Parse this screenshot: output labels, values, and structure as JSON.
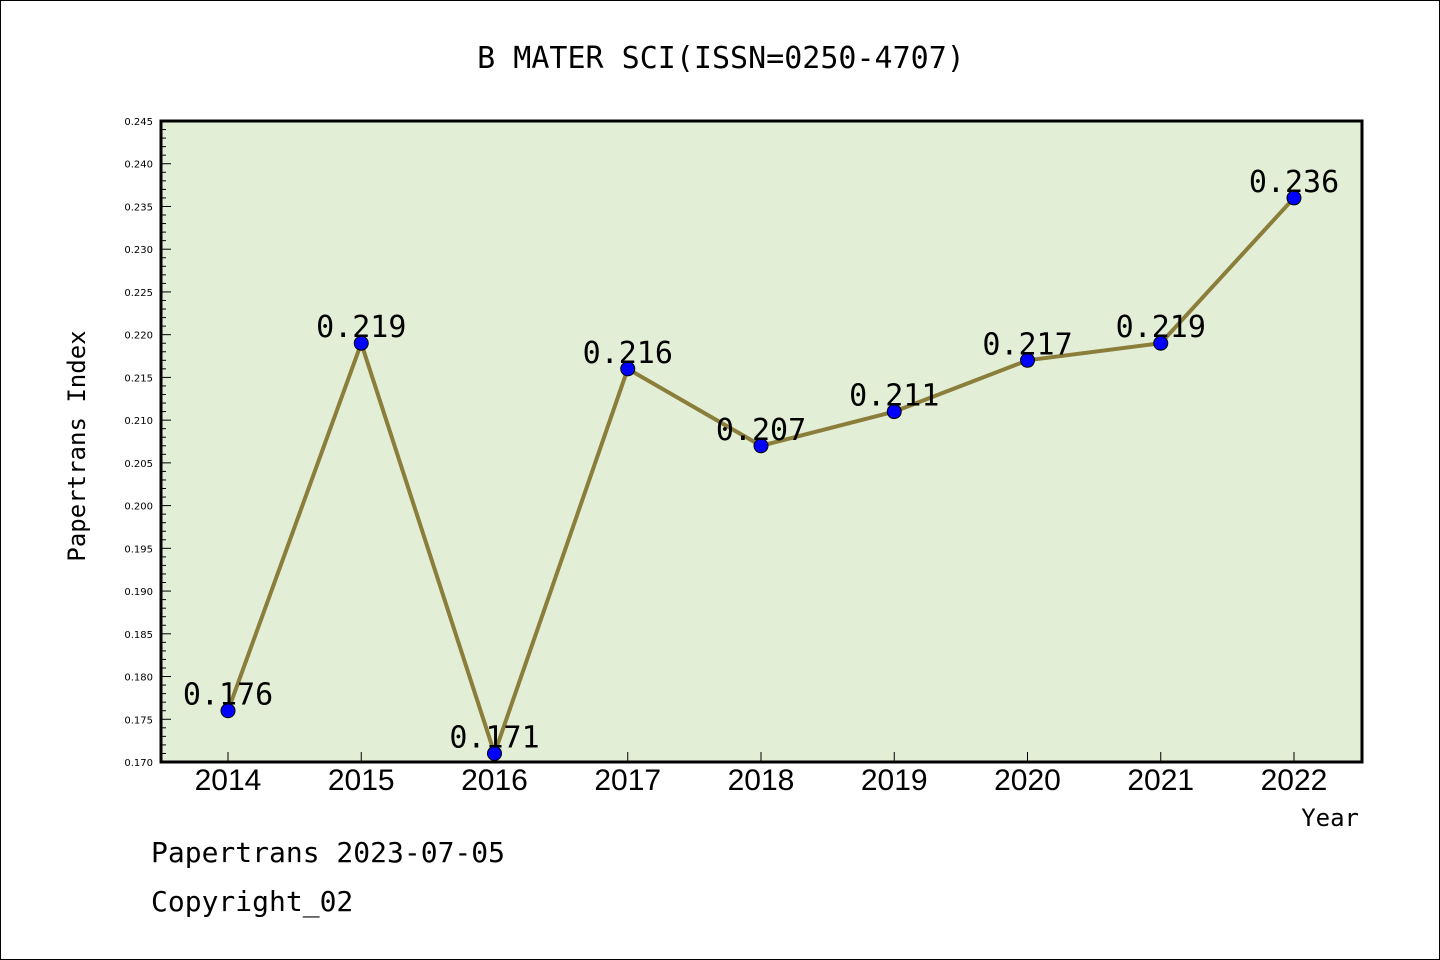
{
  "chart_data": {
    "type": "line",
    "title": "B MATER SCI(ISSN=0250-4707)",
    "xlabel": "Year",
    "ylabel": "Papertrans Index",
    "categories": [
      "2014",
      "2015",
      "2016",
      "2017",
      "2018",
      "2019",
      "2020",
      "2021",
      "2022"
    ],
    "values": [
      0.176,
      0.219,
      0.171,
      0.216,
      0.207,
      0.211,
      0.217,
      0.219,
      0.236
    ],
    "data_labels": [
      "0.176",
      "0.219",
      "0.171",
      "0.216",
      "0.207",
      "0.211",
      "0.217",
      "0.219",
      "0.236"
    ],
    "ylim": [
      0.17,
      0.245
    ],
    "ytick_labels": [
      "0.170",
      "0.175",
      "0.180",
      "0.185",
      "0.190",
      "0.195",
      "0.200",
      "0.205",
      "0.210",
      "0.215",
      "0.220",
      "0.225",
      "0.230",
      "0.235",
      "0.240",
      "0.245"
    ],
    "grid": false,
    "colors": {
      "plot_background": "#e2efd6",
      "line": "#8b7d3a",
      "marker": "#0000ff"
    }
  },
  "footer": {
    "line1": "Papertrans 2023-07-05",
    "line2": "Copyright_02"
  }
}
